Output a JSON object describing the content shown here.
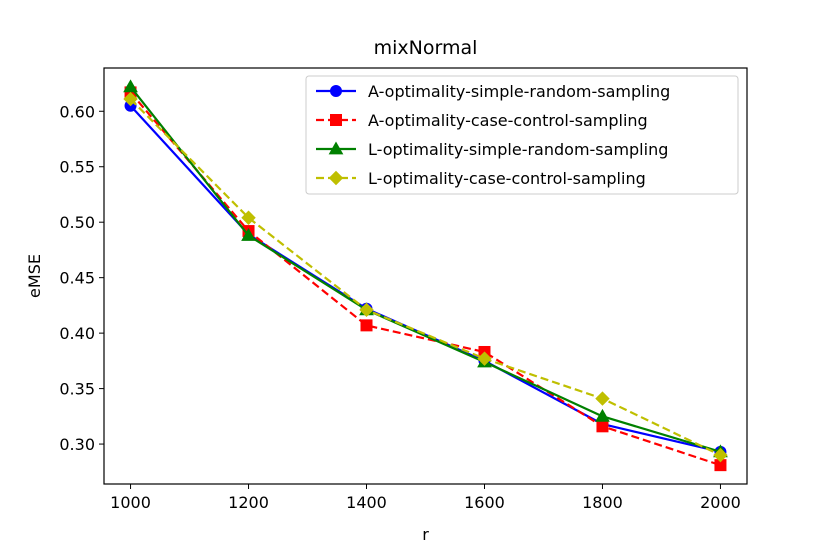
{
  "chart_data": {
    "type": "line",
    "title": "mixNormal",
    "xlabel": "r",
    "ylabel": "eMSE",
    "x": [
      1000,
      1200,
      1400,
      1600,
      1800,
      2000
    ],
    "xticks": [
      1000,
      1200,
      1400,
      1600,
      1800,
      2000
    ],
    "yticks": [
      0.3,
      0.35,
      0.4,
      0.45,
      0.5,
      0.55,
      0.6
    ],
    "ytick_labels": [
      "0.30",
      "0.35",
      "0.40",
      "0.45",
      "0.50",
      "0.55",
      "0.60"
    ],
    "xlim": [
      955,
      2045
    ],
    "ylim": [
      0.264,
      0.639
    ],
    "grid": false,
    "legend_position": "top-right",
    "series": [
      {
        "name": "A-optimality-simple-random-sampling",
        "values": [
          0.605,
          0.489,
          0.422,
          0.375,
          0.318,
          0.293
        ],
        "color": "#0000ff",
        "linestyle": "solid",
        "marker": "circle"
      },
      {
        "name": "A-optimality-case-control-sampling",
        "values": [
          0.617,
          0.492,
          0.407,
          0.383,
          0.316,
          0.281
        ],
        "color": "#ff0000",
        "linestyle": "dashed",
        "marker": "square"
      },
      {
        "name": "L-optimality-simple-random-sampling",
        "values": [
          0.622,
          0.488,
          0.421,
          0.374,
          0.325,
          0.293
        ],
        "color": "#008000",
        "linestyle": "solid",
        "marker": "triangle"
      },
      {
        "name": "L-optimality-case-control-sampling",
        "values": [
          0.611,
          0.504,
          0.421,
          0.377,
          0.341,
          0.29
        ],
        "color": "#bfbf00",
        "linestyle": "dashed",
        "marker": "diamond"
      }
    ]
  }
}
